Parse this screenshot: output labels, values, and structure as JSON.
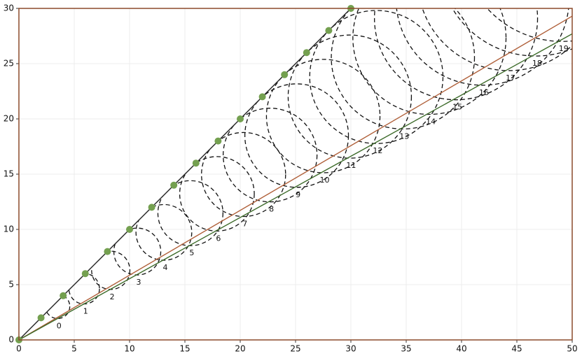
{
  "chart_data": {
    "type": "line",
    "xlim": [
      0,
      50
    ],
    "ylim": [
      0,
      30
    ],
    "xticks": [
      0,
      5,
      10,
      15,
      20,
      25,
      30,
      35,
      40,
      45,
      50
    ],
    "yticks": [
      0,
      5,
      10,
      15,
      20,
      25,
      30
    ],
    "grid": true,
    "frame_color": "#8b4a2b",
    "series": [
      {
        "color": "#222222",
        "marker_color": "#74a050",
        "markers": true,
        "x": [
          0,
          2,
          4,
          6,
          8,
          10,
          12,
          14,
          16,
          18,
          20,
          22,
          24,
          26,
          28,
          30
        ],
        "values": [
          0,
          2,
          4,
          6,
          8,
          10,
          12,
          14,
          16,
          18,
          20,
          22,
          24,
          26,
          28,
          30
        ]
      },
      {
        "color": "#b0603a",
        "markers": false,
        "x": [
          0,
          50
        ],
        "values": [
          0,
          29.3
        ]
      },
      {
        "color": "#3d6b2a",
        "markers": false,
        "x": [
          0,
          50
        ],
        "values": [
          0,
          27.7
        ]
      }
    ],
    "wavefronts": [
      {
        "label": 0,
        "center": [
          3.5,
          3.03
        ],
        "radius": 1.1
      },
      {
        "label": 1,
        "center": [
          5.9,
          4.63
        ],
        "radius": 1.38
      },
      {
        "label": 2,
        "center": [
          8.3,
          6.3
        ],
        "radius": 1.73
      },
      {
        "label": 3,
        "center": [
          10.7,
          8.0
        ],
        "radius": 2.12
      },
      {
        "label": 4,
        "center": [
          13.1,
          9.73
        ],
        "radius": 2.52
      },
      {
        "label": 5,
        "center": [
          15.5,
          11.47
        ],
        "radius": 2.94
      },
      {
        "label": 6,
        "center": [
          17.9,
          13.22
        ],
        "radius": 3.37
      },
      {
        "label": 7,
        "center": [
          20.3,
          14.97
        ],
        "radius": 3.8
      },
      {
        "label": 8,
        "center": [
          22.7,
          16.73
        ],
        "radius": 4.24
      },
      {
        "label": 9,
        "center": [
          25.1,
          18.49
        ],
        "radius": 4.68
      },
      {
        "label": 10,
        "center": [
          27.5,
          20.26
        ],
        "radius": 5.13
      },
      {
        "label": 11,
        "center": [
          29.9,
          22.02
        ],
        "radius": 5.57
      },
      {
        "label": 12,
        "center": [
          32.3,
          23.79
        ],
        "radius": 6.02
      },
      {
        "label": 13,
        "center": [
          34.7,
          25.56
        ],
        "radius": 6.47
      },
      {
        "label": 14,
        "center": [
          37.1,
          27.33
        ],
        "radius": 6.92
      },
      {
        "label": 15,
        "center": [
          39.5,
          29.1
        ],
        "radius": 7.37
      },
      {
        "label": 16,
        "center": [
          41.9,
          30.87
        ],
        "radius": 7.82
      },
      {
        "label": 17,
        "center": [
          44.3,
          32.64
        ],
        "radius": 8.27
      },
      {
        "label": 18,
        "center": [
          46.7,
          34.42
        ],
        "radius": 8.73
      },
      {
        "label": 19,
        "center": [
          49.1,
          36.19
        ],
        "radius": 9.18
      }
    ]
  }
}
